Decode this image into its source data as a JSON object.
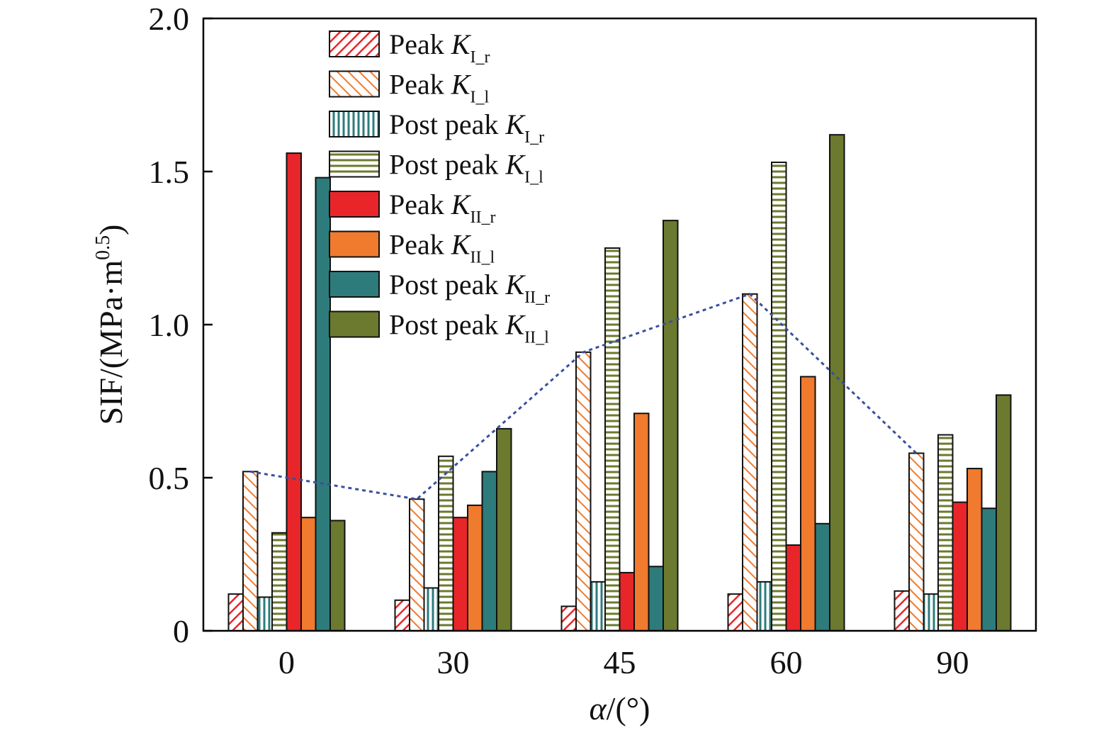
{
  "chart_data": {
    "type": "bar",
    "title": "",
    "xlabel": {
      "symbol": "α",
      "unit": "/(°)"
    },
    "ylabel": {
      "main": "SIF/(MPa·m",
      "sup": "0.5",
      "close": ")"
    },
    "categories": [
      "0",
      "30",
      "45",
      "60",
      "90"
    ],
    "ylim": [
      0,
      2.0
    ],
    "yticks": [
      {
        "value": 0,
        "label": "0"
      },
      {
        "value": 0.5,
        "label": "0.5"
      },
      {
        "value": 1.0,
        "label": "1.0"
      },
      {
        "value": 1.5,
        "label": "1.5"
      },
      {
        "value": 2.0,
        "label": "2.0"
      }
    ],
    "grid": false,
    "legend_position": "top-left",
    "series": [
      {
        "prefix": "Peak ",
        "symbol": "K",
        "sub": "I_r",
        "color": "#e8262a",
        "pattern": "diag-fwd",
        "values": [
          0.12,
          0.1,
          0.08,
          0.12,
          0.13
        ]
      },
      {
        "prefix": "Peak ",
        "symbol": "K",
        "sub": "I_l",
        "color": "#f07a2e",
        "pattern": "diag-back",
        "values": [
          0.52,
          0.43,
          0.91,
          1.1,
          0.58
        ]
      },
      {
        "prefix": "Post peak ",
        "symbol": "K",
        "sub": "I_r",
        "color": "#2e7b7b",
        "pattern": "vertical",
        "values": [
          0.11,
          0.14,
          0.16,
          0.16,
          0.12
        ]
      },
      {
        "prefix": "Post peak ",
        "symbol": "K",
        "sub": "I_l",
        "color": "#6b7a2e",
        "pattern": "horizontal",
        "values": [
          0.32,
          0.57,
          1.25,
          1.53,
          0.64
        ]
      },
      {
        "prefix": "Peak ",
        "symbol": "K",
        "sub": "II_r",
        "color": "#e8262a",
        "pattern": "solid",
        "values": [
          1.56,
          0.37,
          0.19,
          0.28,
          0.42
        ]
      },
      {
        "prefix": "Peak ",
        "symbol": "K",
        "sub": "II_l",
        "color": "#f07a2e",
        "pattern": "solid",
        "values": [
          0.37,
          0.41,
          0.71,
          0.83,
          0.53
        ]
      },
      {
        "prefix": "Post peak ",
        "symbol": "K",
        "sub": "II_r",
        "color": "#2e7b7b",
        "pattern": "solid",
        "values": [
          1.48,
          0.52,
          0.21,
          0.35,
          0.4
        ]
      },
      {
        "prefix": "Post peak ",
        "symbol": "K",
        "sub": "II_l",
        "color": "#6b7a2e",
        "pattern": "solid",
        "values": [
          0.36,
          0.66,
          1.34,
          1.62,
          0.77
        ]
      }
    ],
    "trend_line": {
      "color": "#3a4fa0",
      "style": "dotted",
      "follows_series_index": 1,
      "values": [
        0.52,
        0.43,
        0.91,
        1.1,
        0.58
      ]
    }
  }
}
